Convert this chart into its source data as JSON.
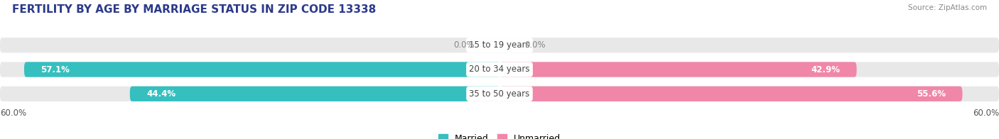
{
  "title": "FERTILITY BY AGE BY MARRIAGE STATUS IN ZIP CODE 13338",
  "source": "Source: ZipAtlas.com",
  "categories": [
    "15 to 19 years",
    "20 to 34 years",
    "35 to 50 years"
  ],
  "married": [
    0.0,
    57.1,
    44.4
  ],
  "unmarried": [
    0.0,
    42.9,
    55.6
  ],
  "married_labels": [
    "0.0%",
    "57.1%",
    "44.4%"
  ],
  "unmarried_labels": [
    "0.0%",
    "42.9%",
    "55.6%"
  ],
  "axis_label_left": "60.0%",
  "axis_label_right": "60.0%",
  "max_val": 60.0,
  "married_color": "#36bfbf",
  "unmarried_color": "#f087a8",
  "bar_bg_color": "#e8e8e8",
  "bar_height": 0.62,
  "title_fontsize": 11,
  "label_fontsize": 8.5,
  "category_fontsize": 8.5,
  "legend_fontsize": 9,
  "figsize": [
    14.06,
    1.96
  ],
  "dpi": 100,
  "background_color": "#ffffff"
}
